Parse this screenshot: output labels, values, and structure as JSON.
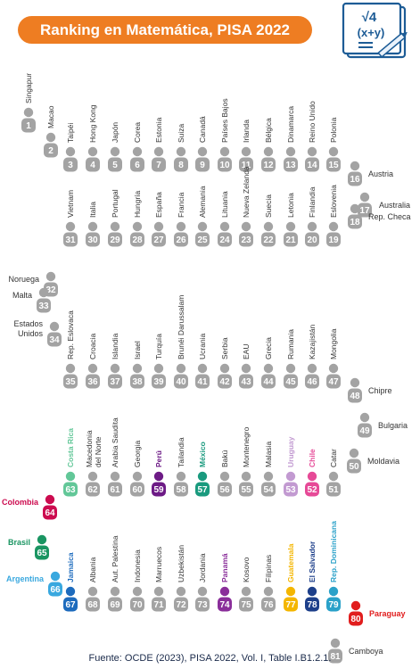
{
  "title": "Ranking en Matemática, PISA 2022",
  "source": "Fuente: OCDE (2023), PISA 2022, Vol. I, Table I.B1.2.1.",
  "icon": {
    "name": "math-formula-icon",
    "text_top": "√4",
    "text_bottom": "(x+y)",
    "color": "#1d5c96"
  },
  "colors": {
    "default": "#a3a3a3",
    "costa_rica": "#62c798",
    "peru": "#6d1b86",
    "mexico": "#1a9a7e",
    "uruguay": "#c29ad1",
    "chile": "#e64a97",
    "colombia": "#cc0b4f",
    "brasil": "#1a9562",
    "argentina": "#39a8df",
    "jamaica": "#1d6bbd",
    "panama": "#8a2e9a",
    "guatemala": "#f4b600",
    "el_salvador": "#1d3f8a",
    "rep_dominicana": "#2aa1c9",
    "paraguay": "#e11d1d",
    "label_default": "#333333",
    "title_bg": "#ee7d22"
  },
  "chart_data": {
    "type": "table",
    "title": "Ranking en Matemática, PISA 2022",
    "ranking": [
      {
        "rank": 1,
        "country": "Singapur"
      },
      {
        "rank": 2,
        "country": "Macao"
      },
      {
        "rank": 3,
        "country": "Taipéi"
      },
      {
        "rank": 4,
        "country": "Hong Kong"
      },
      {
        "rank": 5,
        "country": "Japón"
      },
      {
        "rank": 6,
        "country": "Corea"
      },
      {
        "rank": 7,
        "country": "Estonia"
      },
      {
        "rank": 8,
        "country": "Suiza"
      },
      {
        "rank": 9,
        "country": "Canadá"
      },
      {
        "rank": 10,
        "country": "Países Bajos"
      },
      {
        "rank": 11,
        "country": "Irlanda"
      },
      {
        "rank": 12,
        "country": "Bélgica"
      },
      {
        "rank": 13,
        "country": "Dinamarca"
      },
      {
        "rank": 14,
        "country": "Reino Unido"
      },
      {
        "rank": 15,
        "country": "Polonia"
      },
      {
        "rank": 16,
        "country": "Austria"
      },
      {
        "rank": 17,
        "country": "Australia"
      },
      {
        "rank": 18,
        "country": "Rep. Checa"
      },
      {
        "rank": 19,
        "country": "Eslovenia"
      },
      {
        "rank": 20,
        "country": "Finlandia"
      },
      {
        "rank": 21,
        "country": "Letonia"
      },
      {
        "rank": 22,
        "country": "Suecia"
      },
      {
        "rank": 23,
        "country": "Nueva Zelanda"
      },
      {
        "rank": 24,
        "country": "Lituania"
      },
      {
        "rank": 25,
        "country": "Alemania"
      },
      {
        "rank": 26,
        "country": "Francia"
      },
      {
        "rank": 27,
        "country": "España"
      },
      {
        "rank": 28,
        "country": "Hungría"
      },
      {
        "rank": 29,
        "country": "Portugal"
      },
      {
        "rank": 30,
        "country": "Italia"
      },
      {
        "rank": 31,
        "country": "Vietnam"
      },
      {
        "rank": 32,
        "country": "Noruega"
      },
      {
        "rank": 33,
        "country": "Malta"
      },
      {
        "rank": 34,
        "country": "Estados Unidos"
      },
      {
        "rank": 35,
        "country": "Rep. Eslovaca"
      },
      {
        "rank": 36,
        "country": "Croacia"
      },
      {
        "rank": 37,
        "country": "Islandia"
      },
      {
        "rank": 38,
        "country": "Israel"
      },
      {
        "rank": 39,
        "country": "Turquía"
      },
      {
        "rank": 40,
        "country": "Brunéi Darussalam"
      },
      {
        "rank": 41,
        "country": "Ucrania"
      },
      {
        "rank": 42,
        "country": "Serbia"
      },
      {
        "rank": 43,
        "country": "EAU"
      },
      {
        "rank": 44,
        "country": "Grecia"
      },
      {
        "rank": 45,
        "country": "Rumania"
      },
      {
        "rank": 46,
        "country": "Kazajistán"
      },
      {
        "rank": 47,
        "country": "Mongolia"
      },
      {
        "rank": 48,
        "country": "Chipre"
      },
      {
        "rank": 49,
        "country": "Bulgaria"
      },
      {
        "rank": 50,
        "country": "Moldavia"
      },
      {
        "rank": 51,
        "country": "Catar"
      },
      {
        "rank": 52,
        "country": "Chile",
        "color_key": "chile"
      },
      {
        "rank": 53,
        "country": "Uruguay",
        "color_key": "uruguay"
      },
      {
        "rank": 54,
        "country": "Malasia"
      },
      {
        "rank": 55,
        "country": "Montenegro"
      },
      {
        "rank": 56,
        "country": "Bakú"
      },
      {
        "rank": 57,
        "country": "México",
        "color_key": "mexico"
      },
      {
        "rank": 58,
        "country": "Tailandia"
      },
      {
        "rank": 59,
        "country": "Perú",
        "color_key": "peru"
      },
      {
        "rank": 60,
        "country": "Georgia"
      },
      {
        "rank": 61,
        "country": "Arabia Saudita"
      },
      {
        "rank": 62,
        "country": "Macedonia del Norte"
      },
      {
        "rank": 63,
        "country": "Costa Rica",
        "color_key": "costa_rica"
      },
      {
        "rank": 64,
        "country": "Colombia",
        "color_key": "colombia"
      },
      {
        "rank": 65,
        "country": "Brasil",
        "color_key": "brasil"
      },
      {
        "rank": 66,
        "country": "Argentina",
        "color_key": "argentina"
      },
      {
        "rank": 67,
        "country": "Jamaica",
        "color_key": "jamaica"
      },
      {
        "rank": 68,
        "country": "Albania"
      },
      {
        "rank": 69,
        "country": "Aut. Palestina"
      },
      {
        "rank": 70,
        "country": "Indonesia"
      },
      {
        "rank": 71,
        "country": "Marruecos"
      },
      {
        "rank": 72,
        "country": "Uzbekistán"
      },
      {
        "rank": 73,
        "country": "Jordania"
      },
      {
        "rank": 74,
        "country": "Panamá",
        "color_key": "panama"
      },
      {
        "rank": 75,
        "country": "Kosovo"
      },
      {
        "rank": 76,
        "country": "Filipinas"
      },
      {
        "rank": 77,
        "country": "Guatemala",
        "color_key": "guatemala"
      },
      {
        "rank": 78,
        "country": "El Salvador",
        "color_key": "el_salvador"
      },
      {
        "rank": 79,
        "country": "Rep. Dominicana",
        "color_key": "rep_dominicana"
      },
      {
        "rank": 80,
        "country": "Paraguay",
        "color_key": "paraguay"
      },
      {
        "rank": 81,
        "country": "Camboya"
      }
    ]
  }
}
